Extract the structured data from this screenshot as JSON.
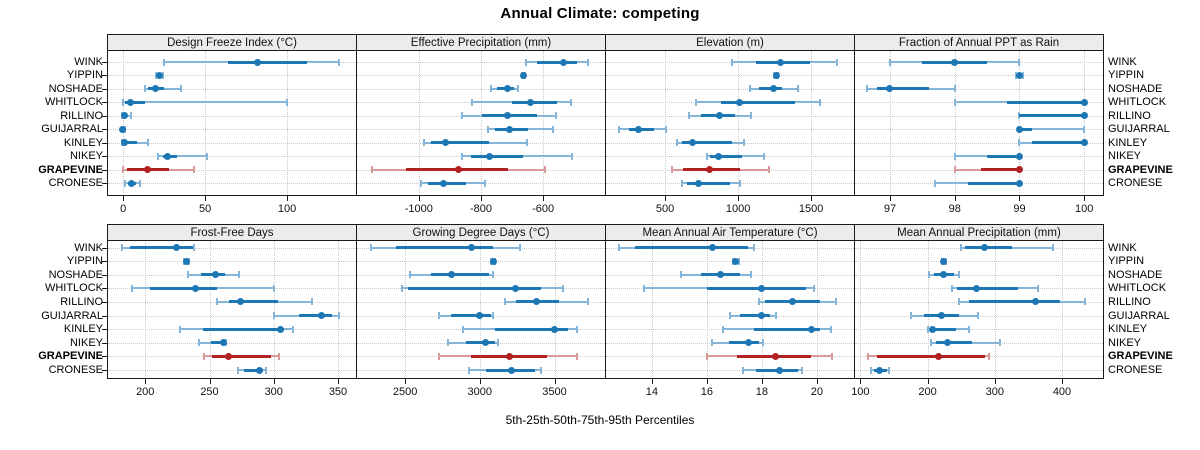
{
  "figure": {
    "title": "Annual Climate: competing",
    "caption": "5th-25th-50th-75th-95th Percentiles"
  },
  "colors": {
    "series_main": "#1d77b4",
    "series_light": "#85b5d8",
    "highlight_main": "#b22222",
    "highlight_light": "#d99a9a",
    "strip_bg": "#ececec",
    "grid": "#c9c9c9",
    "border": "#1a1a1a"
  },
  "chart_data": {
    "type": "dotplot-percentiles",
    "percentile_labels": [
      "5th",
      "25th",
      "50th",
      "75th",
      "95th"
    ],
    "legend_note": "5th-25th-50th-75th-95th Percentiles",
    "grid": "on",
    "sites": [
      "WINK",
      "YIPPIN",
      "NOSHADE",
      "WHITLOCK",
      "RILLINO",
      "GUIJARRAL",
      "KINLEY",
      "NIKEY",
      "GRAPEVINE",
      "CRONESE"
    ],
    "highlight_site": "GRAPEVINE",
    "panels": [
      {
        "title": "Design Freeze Index (°C)",
        "grid_row": 0,
        "grid_col": 0,
        "xlim": [
          -9.3,
          142.1
        ],
        "ticks": [
          0,
          50,
          100
        ],
        "values": [
          [
            25,
            64,
            82,
            112,
            132
          ],
          [
            20,
            21,
            22,
            23,
            24
          ],
          [
            13,
            15,
            20,
            25,
            35
          ],
          [
            0,
            1,
            4.5,
            13.5,
            100
          ],
          [
            -0.5,
            0,
            1,
            2.5,
            4.5
          ],
          [
            -1,
            -0.6,
            -0.2,
            0.2,
            0.8
          ],
          [
            -0.5,
            0,
            0.5,
            8.5,
            15
          ],
          [
            21,
            24,
            27,
            33,
            51
          ],
          [
            0,
            2,
            15,
            28,
            43
          ],
          [
            1,
            3,
            5,
            8,
            10
          ]
        ]
      },
      {
        "title": "Effective Precipitation (mm)",
        "grid_row": 0,
        "grid_col": 1,
        "xlim": [
          -1199,
          -401
        ],
        "ticks": [
          -1000,
          -800,
          -600
        ],
        "values": [
          [
            -656,
            -620,
            -533,
            -490,
            -457
          ],
          [
            -668,
            -666,
            -664,
            -662,
            -660
          ],
          [
            -767,
            -748,
            -716,
            -694,
            -680
          ],
          [
            -830,
            -700,
            -642,
            -555,
            -512
          ],
          [
            -862,
            -798,
            -714,
            -621,
            -558
          ],
          [
            -777,
            -754,
            -708,
            -648,
            -568
          ],
          [
            -984,
            -960,
            -915,
            -775,
            -653
          ],
          [
            -860,
            -833,
            -772,
            -664,
            -507
          ],
          [
            -1152,
            -1040,
            -871,
            -712,
            -595
          ],
          [
            -993,
            -970,
            -920,
            -849,
            -786
          ]
        ]
      },
      {
        "title": "Elevation (m)",
        "grid_row": 0,
        "grid_col": 2,
        "xlim": [
          96,
          1793
        ],
        "ticks": [
          500,
          1000,
          1500
        ],
        "values": [
          [
            955,
            1120,
            1293,
            1490,
            1675
          ],
          [
            1248,
            1254,
            1260,
            1266,
            1272
          ],
          [
            1080,
            1140,
            1240,
            1300,
            1410
          ],
          [
            715,
            880,
            1010,
            1390,
            1560
          ],
          [
            665,
            745,
            873,
            980,
            1085
          ],
          [
            186,
            250,
            318,
            425,
            505
          ],
          [
            580,
            618,
            686,
            960,
            1040
          ],
          [
            785,
            810,
            868,
            1025,
            1175
          ],
          [
            545,
            620,
            807,
            1015,
            1210
          ],
          [
            618,
            650,
            727,
            945,
            1016
          ]
        ]
      },
      {
        "title": "Fraction of Annual PPT as Rain",
        "grid_row": 0,
        "grid_col": 3,
        "xlim": [
          96.46,
          100.29
        ],
        "ticks": [
          97,
          98,
          99,
          100
        ],
        "values": [
          [
            97,
            97.5,
            98,
            98.5,
            99
          ],
          [
            98.95,
            99,
            99,
            99,
            99.05
          ],
          [
            96.65,
            96.8,
            97,
            97.6,
            98
          ],
          [
            98,
            98.8,
            100,
            100,
            100
          ],
          [
            99,
            99,
            100,
            100,
            100
          ],
          [
            99,
            99,
            99,
            99.2,
            100
          ],
          [
            99,
            99.2,
            100,
            100,
            100
          ],
          [
            98,
            98.5,
            99,
            99,
            99
          ],
          [
            98,
            98.4,
            99,
            99,
            99
          ],
          [
            97.7,
            98.2,
            99,
            99,
            99
          ]
        ]
      },
      {
        "title": "Frost-Free Days",
        "grid_row": 1,
        "grid_col": 0,
        "xlim": [
          171,
          364
        ],
        "ticks": [
          200,
          250,
          300,
          350
        ],
        "values": [
          [
            182,
            188,
            224,
            237,
            238
          ],
          [
            230,
            231,
            232,
            233,
            234
          ],
          [
            233,
            243,
            255,
            262,
            273
          ],
          [
            190,
            204,
            239,
            256,
            300
          ],
          [
            256,
            265,
            274,
            303,
            330
          ],
          [
            300,
            320,
            337,
            345,
            351
          ],
          [
            227,
            245,
            305,
            308,
            315
          ],
          [
            242,
            251,
            261,
            262,
            263
          ],
          [
            246,
            252,
            265,
            298,
            304
          ],
          [
            272,
            277,
            289,
            292,
            294
          ]
        ]
      },
      {
        "title": "Growing Degree Days (°C)",
        "grid_row": 1,
        "grid_col": 1,
        "xlim": [
          2178,
          3838
        ],
        "ticks": [
          2500,
          3000,
          3500
        ],
        "values": [
          [
            2270,
            2440,
            2945,
            3090,
            3270
          ],
          [
            3075,
            3085,
            3090,
            3095,
            3105
          ],
          [
            2530,
            2670,
            2810,
            3060,
            3090
          ],
          [
            2480,
            2520,
            3240,
            3410,
            3560
          ],
          [
            3170,
            3240,
            3380,
            3530,
            3725
          ],
          [
            2730,
            2810,
            3000,
            3075,
            3090
          ],
          [
            2890,
            3105,
            3500,
            3590,
            3650
          ],
          [
            2790,
            2905,
            3035,
            3105,
            3125
          ],
          [
            2725,
            2940,
            3200,
            3450,
            3650
          ],
          [
            2925,
            3040,
            3210,
            3370,
            3410
          ]
        ]
      },
      {
        "title": "Mean Annual Air Temperature (°C)",
        "grid_row": 1,
        "grid_col": 2,
        "xlim": [
          12.33,
          21.35
        ],
        "ticks": [
          14,
          16,
          18,
          20
        ],
        "values": [
          [
            12.8,
            13.4,
            16.2,
            17.5,
            17.7
          ],
          [
            16.95,
            17.0,
            17.05,
            17.1,
            17.15
          ],
          [
            15.05,
            15.8,
            16.5,
            17.2,
            17.6
          ],
          [
            13.7,
            16.0,
            18.0,
            19.6,
            19.9
          ],
          [
            17.9,
            18.1,
            19.1,
            20.1,
            20.7
          ],
          [
            16.85,
            17.2,
            18.0,
            18.3,
            18.5
          ],
          [
            16.6,
            17.7,
            19.8,
            20.1,
            20.5
          ],
          [
            16.2,
            16.8,
            17.5,
            17.9,
            18.05
          ],
          [
            16.0,
            17.1,
            18.5,
            19.8,
            20.55
          ],
          [
            17.3,
            17.8,
            18.65,
            19.3,
            19.45
          ]
        ]
      },
      {
        "title": "Mean Annual Precipitation (mm)",
        "grid_row": 1,
        "grid_col": 3,
        "xlim": [
          92,
          461
        ],
        "ticks": [
          100,
          200,
          300,
          400
        ],
        "values": [
          [
            249,
            255,
            285,
            325,
            386
          ],
          [
            221,
            223,
            224,
            225,
            227
          ],
          [
            202,
            210,
            224,
            239,
            247
          ],
          [
            237,
            244,
            273,
            335,
            364
          ],
          [
            246,
            261,
            361,
            397,
            434
          ],
          [
            175,
            195,
            221,
            247,
            275
          ],
          [
            200,
            203,
            207,
            242,
            261
          ],
          [
            205,
            212,
            230,
            266,
            308
          ],
          [
            112,
            125,
            216,
            285,
            291
          ],
          [
            116,
            121,
            128,
            140,
            143
          ]
        ]
      }
    ]
  }
}
